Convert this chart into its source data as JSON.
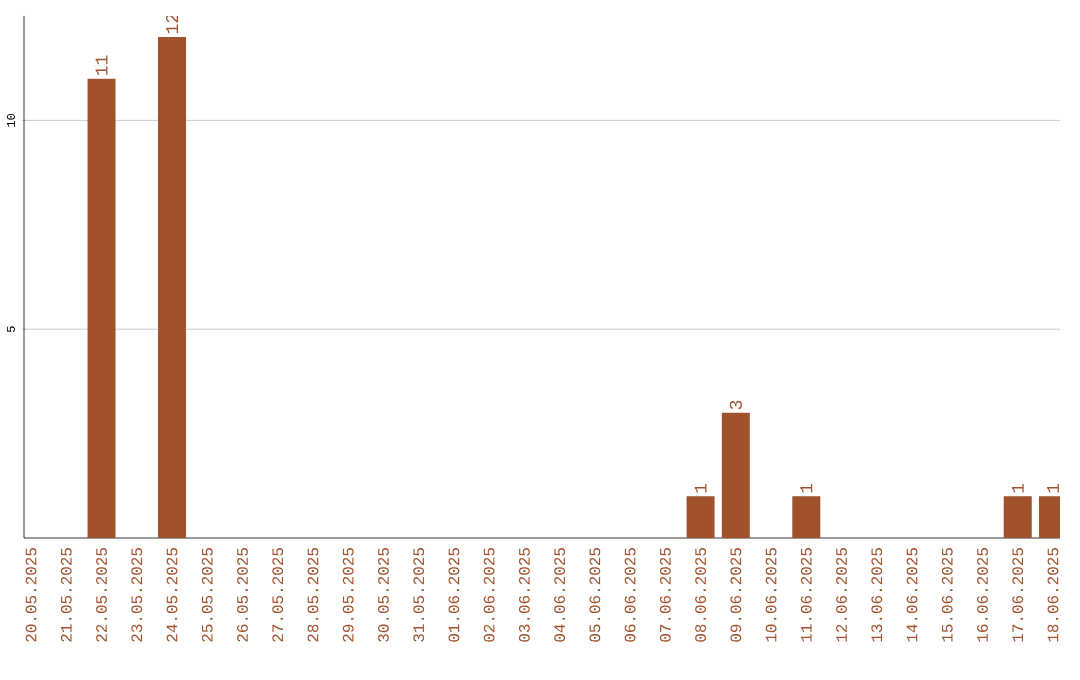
{
  "chart_data": {
    "type": "bar",
    "categories": [
      "20.05.2025",
      "21.05.2025",
      "22.05.2025",
      "23.05.2025",
      "24.05.2025",
      "25.05.2025",
      "26.05.2025",
      "27.05.2025",
      "28.05.2025",
      "29.05.2025",
      "30.05.2025",
      "31.05.2025",
      "01.06.2025",
      "02.06.2025",
      "03.06.2025",
      "04.06.2025",
      "05.06.2025",
      "06.06.2025",
      "07.06.2025",
      "08.06.2025",
      "09.06.2025",
      "10.06.2025",
      "11.06.2025",
      "12.06.2025",
      "13.06.2025",
      "14.06.2025",
      "15.06.2025",
      "16.06.2025",
      "17.06.2025",
      "18.06.2025"
    ],
    "values": [
      0,
      0,
      11,
      0,
      12,
      0,
      0,
      0,
      0,
      0,
      0,
      0,
      0,
      0,
      0,
      0,
      0,
      0,
      0,
      1,
      3,
      0,
      1,
      0,
      0,
      0,
      0,
      0,
      1,
      1
    ],
    "value_labels": [
      null,
      null,
      "11",
      null,
      "12",
      null,
      null,
      null,
      null,
      null,
      null,
      null,
      null,
      null,
      null,
      null,
      null,
      null,
      null,
      "1",
      "3",
      null,
      "1",
      null,
      null,
      null,
      null,
      null,
      "1",
      "1"
    ],
    "color": "#a0522d",
    "ylim": [
      0,
      12.5
    ],
    "yticks": [
      5,
      10
    ],
    "grid": "y"
  }
}
